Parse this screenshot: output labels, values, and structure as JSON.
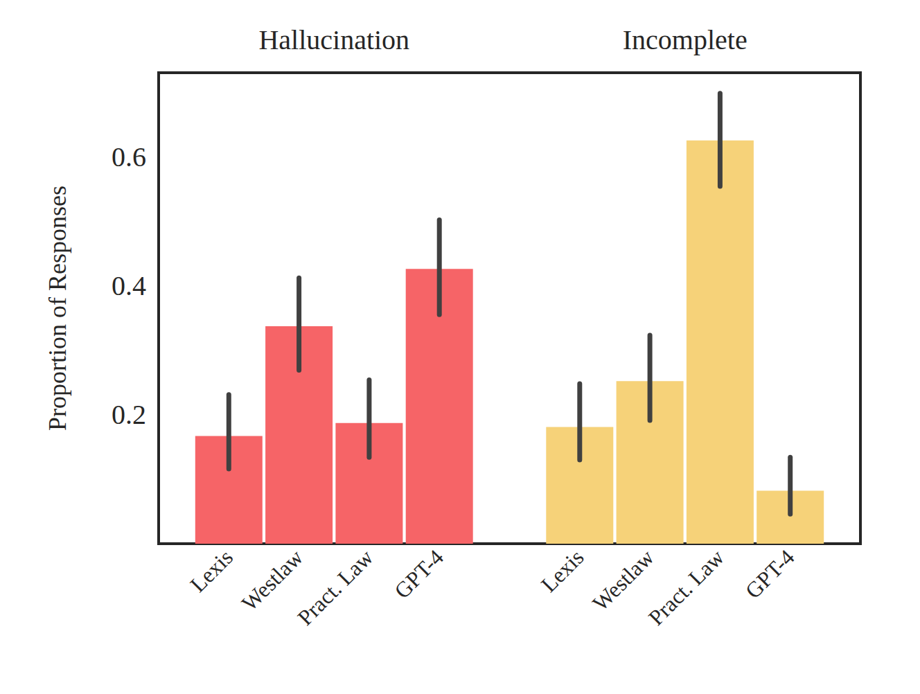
{
  "chart_data": {
    "type": "bar",
    "categories": [
      null,
      "Lexis",
      "Westlaw",
      "Pract. Law",
      "GPT-4",
      null,
      "Lexis",
      "Westlaw",
      "Pract. Law",
      "GPT-4",
      null
    ],
    "y_label": "Proportion of Responses",
    "ylim": [
      0,
      0.73
    ],
    "yticks": [
      0.2,
      0.4,
      0.6
    ],
    "grid": false,
    "series": [
      {
        "name": "Hallucination",
        "color": "#f66467",
        "values": [
          null,
          0.167,
          0.337,
          0.187,
          0.426,
          null,
          null,
          null,
          null,
          null,
          null
        ],
        "error_low": [
          null,
          0.116,
          0.269,
          0.134,
          0.355,
          null,
          null,
          null,
          null,
          null,
          null
        ],
        "error_high": [
          null,
          0.231,
          0.412,
          0.254,
          0.502,
          null,
          null,
          null,
          null,
          null,
          null
        ]
      },
      {
        "name": "Incomplete",
        "color": "#f6d279",
        "values": [
          null,
          null,
          null,
          null,
          null,
          null,
          0.181,
          0.252,
          0.625,
          0.082,
          null
        ],
        "error_low": [
          null,
          null,
          null,
          null,
          null,
          null,
          0.13,
          0.191,
          0.554,
          0.046,
          null
        ],
        "error_high": [
          null,
          null,
          null,
          null,
          null,
          null,
          0.248,
          0.323,
          0.698,
          0.134,
          null
        ]
      }
    ]
  }
}
